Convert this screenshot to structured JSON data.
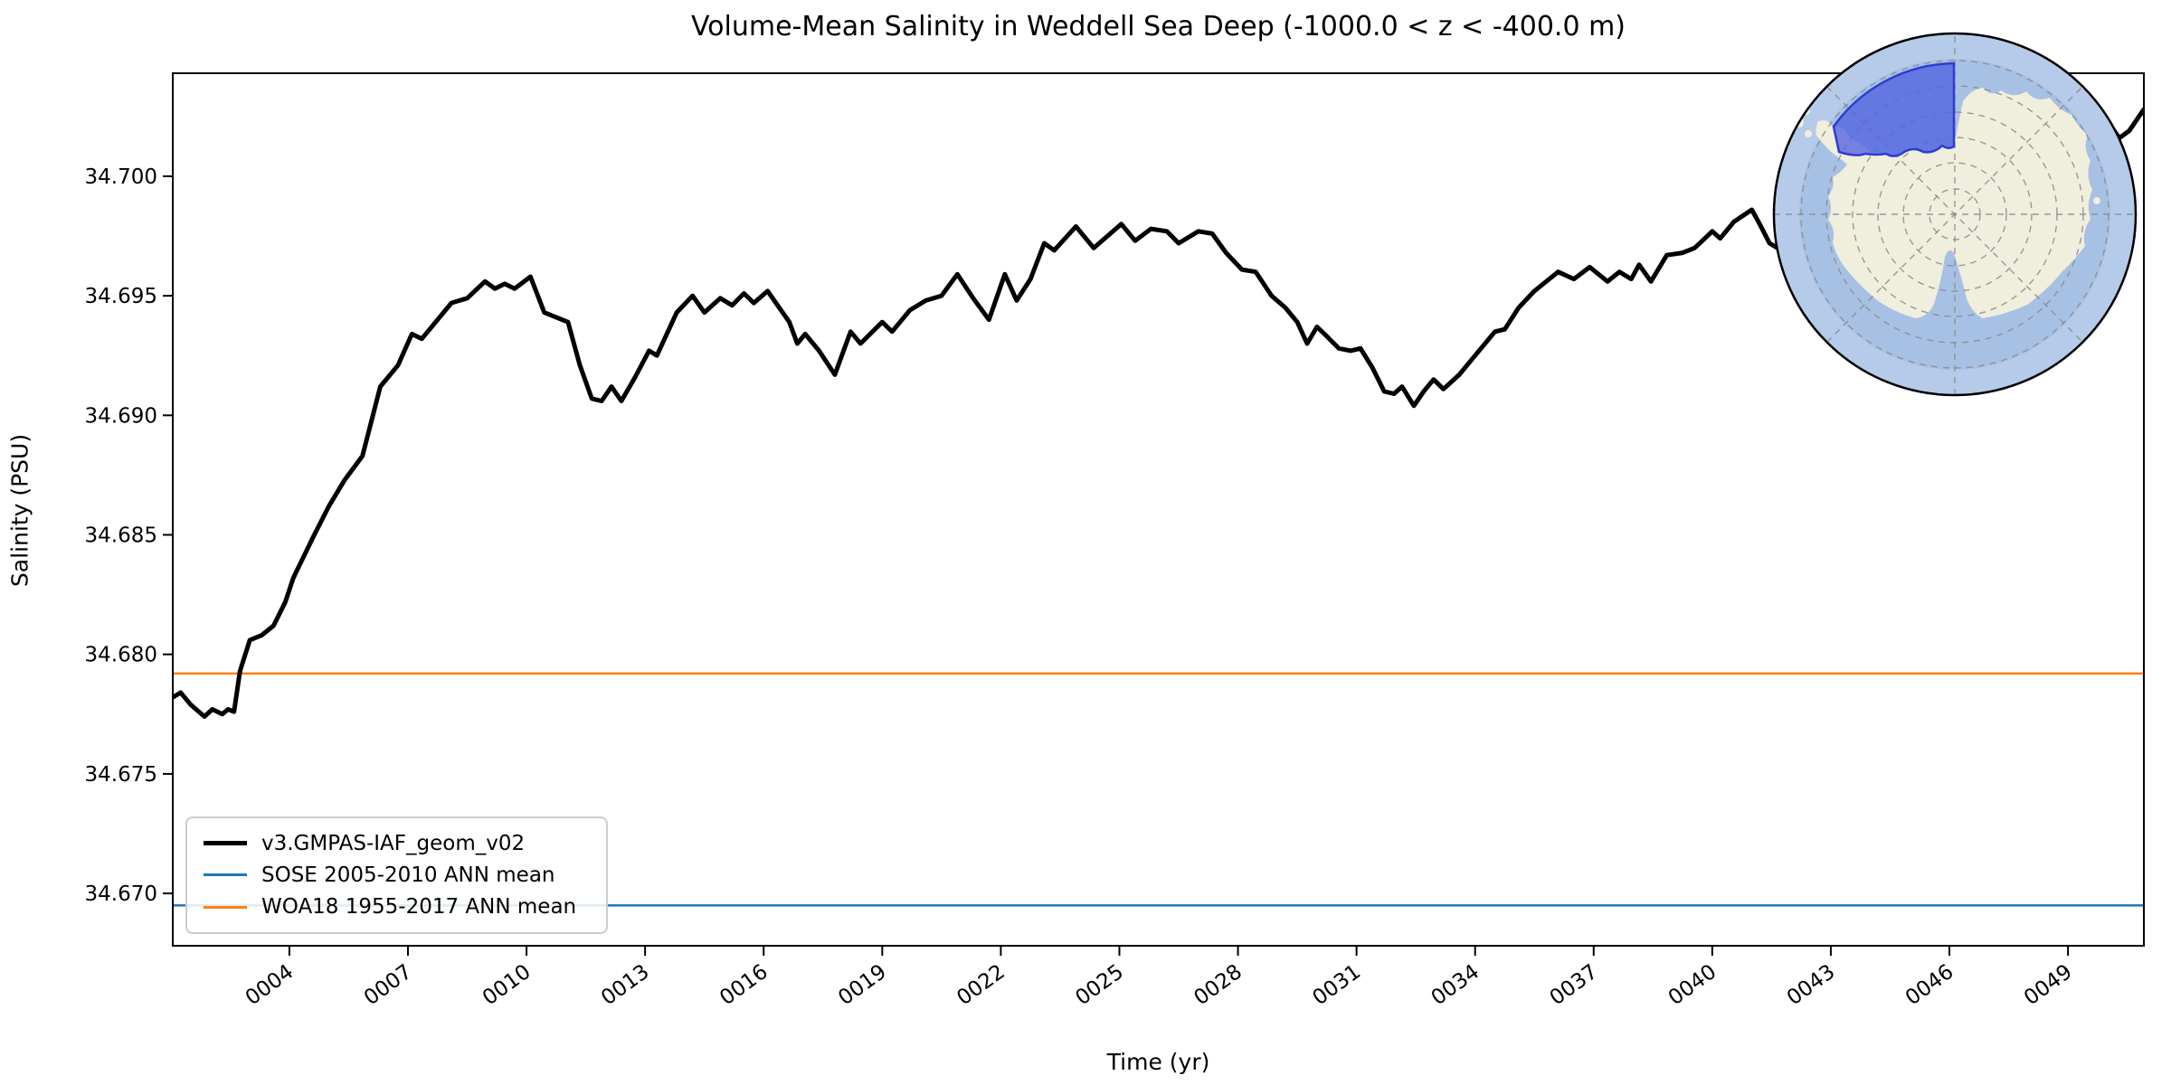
{
  "chart_data": {
    "type": "line",
    "title": "Volume-Mean Salinity in Weddell Sea Deep (-1000.0 < z < -400.0 m)",
    "xlabel": "Time (yr)",
    "ylabel": "Salinity (PSU)",
    "xlim": [
      1.05,
      50.92
    ],
    "ylim": [
      34.66781,
      34.70431
    ],
    "grid": false,
    "legend_position": "lower left",
    "xticks": [
      {
        "label": "0004",
        "value": 4
      },
      {
        "label": "0007",
        "value": 7
      },
      {
        "label": "0010",
        "value": 10
      },
      {
        "label": "0013",
        "value": 13
      },
      {
        "label": "0016",
        "value": 16
      },
      {
        "label": "0019",
        "value": 19
      },
      {
        "label": "0022",
        "value": 22
      },
      {
        "label": "0025",
        "value": 25
      },
      {
        "label": "0028",
        "value": 28
      },
      {
        "label": "0031",
        "value": 31
      },
      {
        "label": "0034",
        "value": 34
      },
      {
        "label": "0037",
        "value": 37
      },
      {
        "label": "0040",
        "value": 40
      },
      {
        "label": "0043",
        "value": 43
      },
      {
        "label": "0046",
        "value": 46
      },
      {
        "label": "0049",
        "value": 49
      }
    ],
    "yticks": [
      {
        "label": "34.700",
        "value": 34.7
      },
      {
        "label": "34.695",
        "value": 34.695
      },
      {
        "label": "34.690",
        "value": 34.69
      },
      {
        "label": "34.685",
        "value": 34.685
      },
      {
        "label": "34.680",
        "value": 34.68
      },
      {
        "label": "34.675",
        "value": 34.675
      },
      {
        "label": "34.670",
        "value": 34.67
      }
    ],
    "legend": [
      {
        "label": "v3.GMPAS-IAF_geom_v02",
        "color": "#000000",
        "lw": 5
      },
      {
        "label": "SOSE 2005-2010 ANN mean",
        "color": "#1f77b4",
        "lw": 3
      },
      {
        "label": "WOA18 1955-2017 ANN mean",
        "color": "#ff7f0e",
        "lw": 3
      }
    ],
    "hlines": [
      {
        "name": "SOSE 2005-2010 ANN mean",
        "value": 34.6695,
        "color": "#1f77b4",
        "lw": 2.5
      },
      {
        "name": "WOA18 1955-2017 ANN mean",
        "value": 34.6792,
        "color": "#ff7f0e",
        "lw": 2.5
      }
    ],
    "series": [
      {
        "name": "v3.GMPAS-IAF_geom_v02",
        "color": "#000000",
        "lw": 5,
        "points": [
          [
            1.05,
            34.6782
          ],
          [
            1.25,
            34.6784
          ],
          [
            1.5,
            34.6779
          ],
          [
            1.85,
            34.6774
          ],
          [
            2.05,
            34.6777
          ],
          [
            2.3,
            34.6775
          ],
          [
            2.45,
            34.6777
          ],
          [
            2.6,
            34.6776
          ],
          [
            2.75,
            34.6793
          ],
          [
            3.0,
            34.6806
          ],
          [
            3.3,
            34.6808
          ],
          [
            3.6,
            34.6812
          ],
          [
            3.9,
            34.6822
          ],
          [
            4.1,
            34.6832
          ],
          [
            4.6,
            34.6849
          ],
          [
            5.0,
            34.6862
          ],
          [
            5.4,
            34.6873
          ],
          [
            5.85,
            34.6883
          ],
          [
            6.3,
            34.6912
          ],
          [
            6.75,
            34.6921
          ],
          [
            7.1,
            34.6934
          ],
          [
            7.35,
            34.6932
          ],
          [
            7.7,
            34.6939
          ],
          [
            8.1,
            34.6947
          ],
          [
            8.5,
            34.6949
          ],
          [
            8.95,
            34.6956
          ],
          [
            9.2,
            34.6953
          ],
          [
            9.45,
            34.6955
          ],
          [
            9.7,
            34.6953
          ],
          [
            10.1,
            34.6958
          ],
          [
            10.45,
            34.6943
          ],
          [
            10.75,
            34.6941
          ],
          [
            11.05,
            34.6939
          ],
          [
            11.35,
            34.6921
          ],
          [
            11.65,
            34.6907
          ],
          [
            11.9,
            34.6906
          ],
          [
            12.15,
            34.6912
          ],
          [
            12.4,
            34.6906
          ],
          [
            12.75,
            34.6916
          ],
          [
            13.1,
            34.6927
          ],
          [
            13.3,
            34.6925
          ],
          [
            13.8,
            34.6943
          ],
          [
            14.2,
            34.695
          ],
          [
            14.5,
            34.6943
          ],
          [
            14.9,
            34.6949
          ],
          [
            15.2,
            34.6946
          ],
          [
            15.5,
            34.6951
          ],
          [
            15.75,
            34.6947
          ],
          [
            16.1,
            34.6952
          ],
          [
            16.65,
            34.6939
          ],
          [
            16.85,
            34.693
          ],
          [
            17.05,
            34.6934
          ],
          [
            17.4,
            34.6927
          ],
          [
            17.8,
            34.6917
          ],
          [
            18.2,
            34.6935
          ],
          [
            18.45,
            34.693
          ],
          [
            19.0,
            34.6939
          ],
          [
            19.25,
            34.6935
          ],
          [
            19.7,
            34.6944
          ],
          [
            20.1,
            34.6948
          ],
          [
            20.5,
            34.695
          ],
          [
            20.9,
            34.6959
          ],
          [
            21.3,
            34.6949
          ],
          [
            21.7,
            34.694
          ],
          [
            22.1,
            34.6959
          ],
          [
            22.4,
            34.6948
          ],
          [
            22.75,
            34.6957
          ],
          [
            23.1,
            34.6972
          ],
          [
            23.35,
            34.6969
          ],
          [
            23.9,
            34.6979
          ],
          [
            24.35,
            34.697
          ],
          [
            24.7,
            34.6975
          ],
          [
            25.05,
            34.698
          ],
          [
            25.4,
            34.6973
          ],
          [
            25.8,
            34.6978
          ],
          [
            26.2,
            34.6977
          ],
          [
            26.5,
            34.6972
          ],
          [
            27.0,
            34.6977
          ],
          [
            27.35,
            34.6976
          ],
          [
            27.7,
            34.6968
          ],
          [
            28.1,
            34.6961
          ],
          [
            28.45,
            34.696
          ],
          [
            28.85,
            34.695
          ],
          [
            29.2,
            34.6945
          ],
          [
            29.5,
            34.6939
          ],
          [
            29.75,
            34.693
          ],
          [
            30.0,
            34.6937
          ],
          [
            30.25,
            34.6933
          ],
          [
            30.55,
            34.6928
          ],
          [
            30.85,
            34.6927
          ],
          [
            31.1,
            34.6928
          ],
          [
            31.4,
            34.692
          ],
          [
            31.7,
            34.691
          ],
          [
            31.95,
            34.6909
          ],
          [
            32.15,
            34.6912
          ],
          [
            32.45,
            34.6904
          ],
          [
            32.7,
            34.691
          ],
          [
            32.95,
            34.6915
          ],
          [
            33.2,
            34.6911
          ],
          [
            33.6,
            34.6917
          ],
          [
            34.0,
            34.6925
          ],
          [
            34.5,
            34.6935
          ],
          [
            34.75,
            34.6936
          ],
          [
            35.1,
            34.6945
          ],
          [
            35.5,
            34.6952
          ],
          [
            36.1,
            34.696
          ],
          [
            36.5,
            34.6957
          ],
          [
            36.9,
            34.6962
          ],
          [
            37.35,
            34.6956
          ],
          [
            37.65,
            34.696
          ],
          [
            37.95,
            34.6957
          ],
          [
            38.15,
            34.6963
          ],
          [
            38.45,
            34.6956
          ],
          [
            38.85,
            34.6967
          ],
          [
            39.25,
            34.6968
          ],
          [
            39.55,
            34.697
          ],
          [
            39.75,
            34.6973
          ],
          [
            40.0,
            34.6977
          ],
          [
            40.2,
            34.6974
          ],
          [
            40.55,
            34.6981
          ],
          [
            41.0,
            34.6986
          ],
          [
            41.2,
            34.698
          ],
          [
            41.45,
            34.6972
          ],
          [
            41.75,
            34.6969
          ],
          [
            42.1,
            34.6964
          ],
          [
            42.45,
            34.6968
          ],
          [
            42.8,
            34.6973
          ],
          [
            43.2,
            34.6977
          ],
          [
            43.6,
            34.698
          ],
          [
            44.0,
            34.6983
          ],
          [
            44.4,
            34.6981
          ],
          [
            44.8,
            34.6986
          ],
          [
            45.2,
            34.699
          ],
          [
            45.6,
            34.6993
          ],
          [
            46.0,
            34.6996
          ],
          [
            46.4,
            34.6994
          ],
          [
            46.8,
            34.6999
          ],
          [
            47.2,
            34.7003
          ],
          [
            47.6,
            34.7005
          ],
          [
            48.0,
            34.7009
          ],
          [
            48.4,
            34.7012
          ],
          [
            48.8,
            34.7011
          ],
          [
            49.2,
            34.7016
          ],
          [
            49.6,
            34.7019
          ],
          [
            49.95,
            34.7024
          ],
          [
            50.3,
            34.7016
          ],
          [
            50.55,
            34.7019
          ],
          [
            50.92,
            34.7028
          ]
        ]
      }
    ],
    "inset_map": {
      "region_name": "Weddell Sea",
      "projection": "south-polar-stereographic",
      "ocean_outer_color": "#b6cbe9",
      "ocean_inner_color": "#a7c1e5",
      "land_color": "#f0eedc",
      "region_fill_color": "#5565e0",
      "region_edge_color": "#2e3cd4",
      "graticule_color": "#8a8a8a",
      "edge_color": "#000000"
    }
  }
}
